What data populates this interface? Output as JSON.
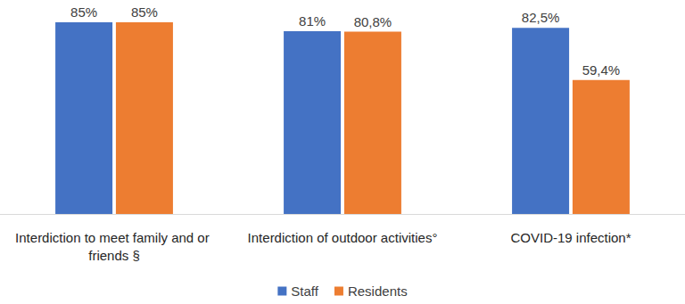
{
  "chart_data": {
    "type": "bar",
    "categories": [
      "Interdiction to meet family and or friends §",
      "Interdiction of outdoor activities°",
      "COVID-19 infection*"
    ],
    "series": [
      {
        "name": "Staff",
        "color": "#4472c4",
        "values": [
          85,
          81,
          82.5
        ],
        "value_labels": [
          "85%",
          "81%",
          "82,5%"
        ]
      },
      {
        "name": "Residents",
        "color": "#ed7d31",
        "values": [
          85,
          80.8,
          59.4
        ],
        "value_labels": [
          "85%",
          "80,8%",
          "59,4%"
        ]
      }
    ],
    "data_labels": true,
    "tick_labels": "x",
    "legend": "bottom",
    "grid": false
  }
}
